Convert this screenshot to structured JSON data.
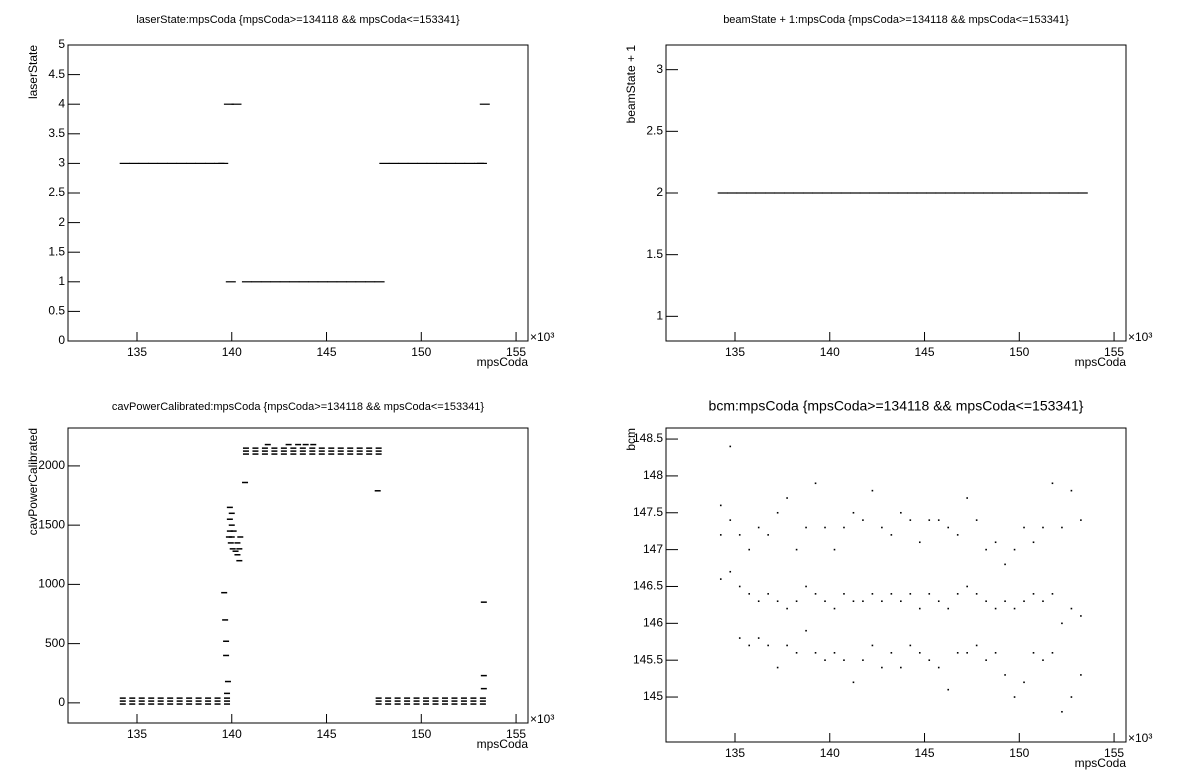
{
  "chart_data": [
    {
      "type": "scatter",
      "title": "laserState:mpsCoda {mpsCoda>=134118 && mpsCoda<=153341}",
      "x_label": "mpsCoda",
      "y_label": "laserState",
      "x_multiplier": "×10³",
      "color": "#000000",
      "xlim": [
        131.36,
        155.63
      ],
      "ylim": [
        0,
        5
      ],
      "xticks": [
        135,
        140,
        145,
        150,
        155
      ],
      "yticks": [
        0,
        0.5,
        1,
        1.5,
        2,
        2.5,
        3,
        3.5,
        4,
        4.5,
        5
      ],
      "x": [
        134.35,
        134.85,
        135.35,
        135.85,
        136.35,
        136.85,
        137.35,
        137.85,
        138.35,
        138.85,
        139.35,
        139.55,
        139.85,
        140.25,
        139.95,
        140.8,
        141.3,
        141.8,
        142.3,
        142.8,
        143.3,
        143.8,
        144.3,
        144.8,
        145.3,
        145.8,
        146.3,
        146.8,
        147.3,
        147.8,
        148.05,
        148.55,
        149.05,
        149.55,
        150.05,
        150.55,
        151.05,
        151.55,
        152.05,
        152.55,
        153.05,
        153.2,
        153.35
      ],
      "y": [
        3,
        3,
        3,
        3,
        3,
        3,
        3,
        3,
        3,
        3,
        3,
        3,
        4,
        4,
        1,
        1,
        1,
        1,
        1,
        1,
        1,
        1,
        1,
        1,
        1,
        1,
        1,
        1,
        1,
        1,
        3,
        3,
        3,
        3,
        3,
        3,
        3,
        3,
        3,
        3,
        3,
        3,
        4
      ]
    },
    {
      "type": "scatter",
      "title": "beamState + 1:mpsCoda {mpsCoda>=134118 && mpsCoda<=153341}",
      "x_label": "mpsCoda",
      "y_label": "beamState + 1",
      "x_multiplier": "×10³",
      "color": "#000000",
      "xlim": [
        131.36,
        155.63
      ],
      "ylim": [
        0.8,
        3.2
      ],
      "xticks": [
        135,
        140,
        145,
        150,
        155
      ],
      "yticks": [
        1,
        1.5,
        2,
        2.5,
        3
      ],
      "x": [
        134.35,
        134.85,
        135.35,
        135.85,
        136.35,
        136.85,
        137.35,
        137.85,
        138.35,
        138.85,
        139.35,
        139.85,
        140.35,
        140.85,
        141.35,
        141.85,
        142.35,
        142.85,
        143.35,
        143.85,
        144.35,
        144.85,
        145.35,
        145.85,
        146.35,
        146.85,
        147.35,
        147.85,
        148.35,
        148.85,
        149.35,
        149.85,
        150.35,
        150.85,
        151.35,
        151.85,
        152.35,
        152.85,
        153.35
      ],
      "y": [
        2,
        2,
        2,
        2,
        2,
        2,
        2,
        2,
        2,
        2,
        2,
        2,
        2,
        2,
        2,
        2,
        2,
        2,
        2,
        2,
        2,
        2,
        2,
        2,
        2,
        2,
        2,
        2,
        2,
        2,
        2,
        2,
        2,
        2,
        2,
        2,
        2,
        2,
        2
      ]
    },
    {
      "type": "scatter",
      "title": "cavPowerCalibrated:mpsCoda {mpsCoda>=134118 && mpsCoda<=153341}",
      "x_label": "mpsCoda",
      "y_label": "cavPowerCalibrated",
      "x_multiplier": "×10³",
      "color": "#000000",
      "xlim": [
        131.36,
        155.63
      ],
      "ylim": [
        -170,
        2320
      ],
      "xticks": [
        135,
        140,
        145,
        150,
        155
      ],
      "yticks": [
        0,
        500,
        1000,
        1500,
        2000
      ],
      "x": [
        134.25,
        134.75,
        135.25,
        135.75,
        136.25,
        136.75,
        137.25,
        137.75,
        138.25,
        138.75,
        139.25,
        139.75,
        134.25,
        134.75,
        135.25,
        135.75,
        136.25,
        136.75,
        137.25,
        137.75,
        138.25,
        138.75,
        139.25,
        139.75,
        134.25,
        134.75,
        135.25,
        135.75,
        136.25,
        136.75,
        137.25,
        137.75,
        138.25,
        138.75,
        139.25,
        139.75,
        147.75,
        148.25,
        148.75,
        149.25,
        149.75,
        150.25,
        150.75,
        151.25,
        151.75,
        152.25,
        152.75,
        153.25,
        147.75,
        148.25,
        148.75,
        149.25,
        149.75,
        150.25,
        150.75,
        151.25,
        151.75,
        152.25,
        152.75,
        153.25,
        147.75,
        148.25,
        148.75,
        149.25,
        149.75,
        150.25,
        150.75,
        151.25,
        151.75,
        152.25,
        152.75,
        153.25,
        140.75,
        141.25,
        141.75,
        142.25,
        142.75,
        143.25,
        143.75,
        144.25,
        144.75,
        145.25,
        145.75,
        146.25,
        146.75,
        147.25,
        147.75,
        140.75,
        141.25,
        141.75,
        142.25,
        142.75,
        143.25,
        143.75,
        144.25,
        144.75,
        145.25,
        145.75,
        146.25,
        146.75,
        147.25,
        147.75,
        140.75,
        141.25,
        141.75,
        142.25,
        142.75,
        143.25,
        143.75,
        144.25,
        144.75,
        145.25,
        145.75,
        146.25,
        146.75,
        147.25,
        147.75,
        139.9,
        139.9,
        139.9,
        139.95,
        140.0,
        140.0,
        140.0,
        140.05,
        140.1,
        139.85,
        140.3,
        140.3,
        140.4,
        140.4,
        140.45,
        140.2,
        141.9,
        143.0,
        143.5,
        143.9,
        144.3,
        140.7,
        147.7,
        153.3,
        153.3,
        153.3,
        139.6,
        139.65,
        139.7,
        139.7,
        139.8,
        139.75
      ],
      "y": [
        40,
        40,
        40,
        40,
        40,
        40,
        40,
        40,
        40,
        40,
        40,
        40,
        15,
        15,
        15,
        15,
        15,
        15,
        15,
        15,
        15,
        15,
        15,
        15,
        -10,
        -10,
        -10,
        -10,
        -10,
        -10,
        -10,
        -10,
        -10,
        -10,
        -10,
        -10,
        40,
        40,
        40,
        40,
        40,
        40,
        40,
        40,
        40,
        40,
        40,
        40,
        15,
        15,
        15,
        15,
        15,
        15,
        15,
        15,
        15,
        15,
        15,
        15,
        -10,
        -10,
        -10,
        -10,
        -10,
        -10,
        -10,
        -10,
        -10,
        -10,
        -10,
        -10,
        2150,
        2150,
        2150,
        2150,
        2150,
        2150,
        2150,
        2150,
        2150,
        2150,
        2150,
        2150,
        2150,
        2150,
        2150,
        2125,
        2125,
        2125,
        2125,
        2125,
        2125,
        2125,
        2125,
        2125,
        2125,
        2125,
        2125,
        2125,
        2125,
        2125,
        2100,
        2100,
        2100,
        2100,
        2100,
        2100,
        2100,
        2100,
        2100,
        2100,
        2100,
        2100,
        2100,
        2100,
        2100,
        1650,
        1550,
        1450,
        1350,
        1600,
        1500,
        1400,
        1300,
        1450,
        1400,
        1350,
        1250,
        1300,
        1200,
        1400,
        1280,
        2180,
        2180,
        2180,
        2180,
        2180,
        1860,
        1790,
        850,
        230,
        120,
        930,
        700,
        520,
        400,
        180,
        80
      ]
    },
    {
      "type": "scatter",
      "title": "bcm:mpsCoda {mpsCoda>=134118 && mpsCoda<=153341}",
      "x_label": "mpsCoda",
      "y_label": "bcm",
      "x_multiplier": "×10³",
      "color": "#000000",
      "xlim": [
        131.36,
        155.63
      ],
      "ylim": [
        144.39,
        148.65
      ],
      "xticks": [
        135,
        140,
        145,
        150,
        155
      ],
      "yticks": [
        145,
        145.5,
        146,
        146.5,
        147,
        147.5,
        148,
        148.5
      ],
      "x": [
        134.25,
        134.25,
        134.25,
        134.75,
        134.75,
        134.75,
        135.25,
        135.25,
        135.25,
        135.75,
        135.75,
        135.75,
        136.25,
        136.25,
        136.25,
        136.75,
        136.75,
        136.75,
        137.25,
        137.25,
        137.25,
        137.75,
        137.75,
        137.75,
        138.25,
        138.25,
        138.25,
        138.75,
        138.75,
        138.75,
        139.25,
        139.25,
        139.25,
        139.75,
        139.75,
        139.75,
        140.25,
        140.25,
        140.25,
        140.75,
        140.75,
        140.75,
        141.25,
        141.25,
        141.25,
        141.75,
        141.75,
        141.75,
        142.25,
        142.25,
        142.25,
        142.75,
        142.75,
        142.75,
        143.25,
        143.25,
        143.25,
        143.75,
        143.75,
        143.75,
        144.25,
        144.25,
        144.25,
        144.75,
        144.75,
        144.75,
        145.25,
        145.25,
        145.25,
        145.75,
        145.75,
        145.75,
        146.25,
        146.25,
        146.25,
        146.75,
        146.75,
        146.75,
        147.25,
        147.25,
        147.25,
        147.75,
        147.75,
        147.75,
        148.25,
        148.25,
        148.25,
        148.75,
        148.75,
        148.75,
        149.25,
        149.25,
        149.25,
        149.75,
        149.75,
        149.75,
        150.25,
        150.25,
        150.25,
        150.75,
        150.75,
        150.75,
        151.25,
        151.25,
        151.25,
        151.75,
        151.75,
        151.75,
        152.25,
        152.25,
        152.25,
        152.75,
        152.75,
        152.75,
        153.25,
        153.25,
        153.25
      ],
      "y": [
        146.6,
        147.2,
        147.6,
        146.7,
        147.4,
        148.4,
        145.8,
        146.5,
        147.2,
        145.7,
        146.4,
        147.0,
        145.8,
        146.3,
        147.3,
        145.7,
        146.4,
        147.2,
        145.4,
        146.3,
        147.5,
        145.7,
        146.2,
        147.7,
        145.6,
        146.3,
        147.0,
        145.9,
        146.5,
        147.3,
        145.6,
        146.4,
        147.9,
        145.5,
        146.3,
        147.3,
        145.6,
        146.2,
        147.0,
        145.5,
        146.4,
        147.3,
        145.2,
        146.3,
        147.5,
        145.5,
        146.3,
        147.4,
        145.7,
        146.4,
        147.8,
        145.4,
        146.3,
        147.3,
        145.6,
        146.4,
        147.2,
        145.4,
        146.3,
        147.5,
        145.7,
        146.4,
        147.4,
        145.6,
        146.2,
        147.1,
        145.5,
        146.4,
        147.4,
        145.4,
        146.3,
        147.4,
        145.1,
        146.2,
        147.3,
        145.6,
        146.4,
        147.2,
        145.6,
        146.5,
        147.7,
        145.7,
        146.4,
        147.4,
        145.5,
        146.3,
        147.0,
        145.6,
        146.2,
        147.1,
        145.3,
        146.3,
        146.8,
        145.0,
        146.2,
        147.0,
        145.2,
        146.3,
        147.3,
        145.6,
        146.4,
        147.1,
        145.5,
        146.3,
        147.3,
        145.6,
        146.4,
        147.9,
        144.8,
        146.0,
        147.3,
        145.0,
        146.2,
        147.8,
        145.3,
        146.1,
        147.4
      ]
    }
  ]
}
